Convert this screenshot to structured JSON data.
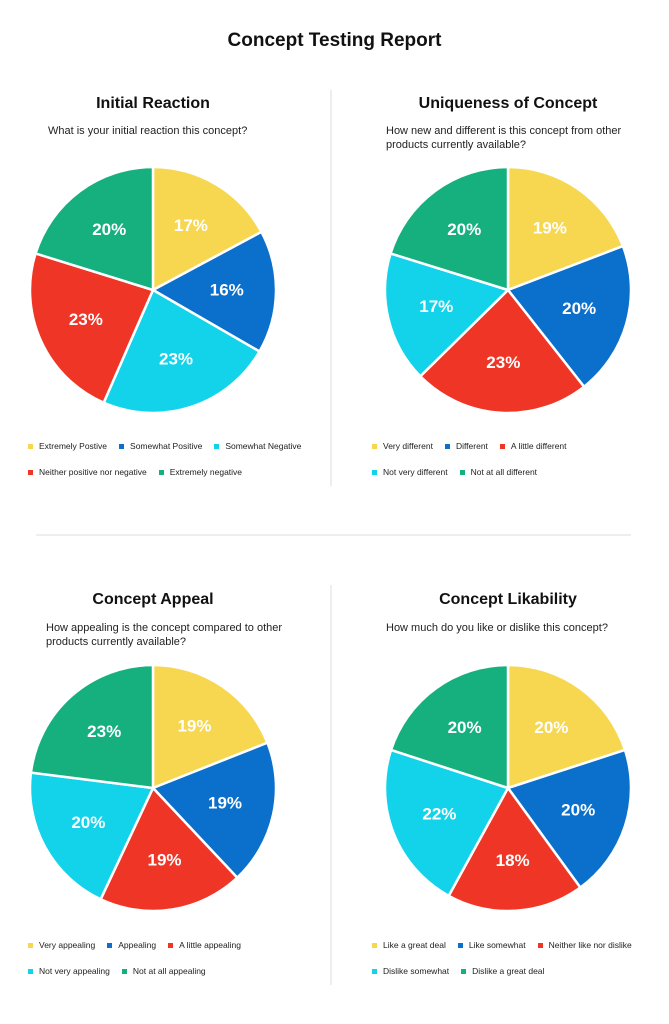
{
  "title": "Concept Testing Report",
  "chart_data": [
    {
      "type": "pie",
      "title": "Initial Reaction",
      "subtitle": "What is your initial reaction this concept?",
      "categories": [
        "Extremely Postive",
        "Somewhat Positive",
        "Somewhat Negative",
        "Neither positive nor negative",
        "Extremely negative"
      ],
      "values": [
        17,
        16,
        23,
        23,
        20
      ],
      "value_labels": [
        "17%",
        "16%",
        "23%",
        "23%",
        "20%"
      ],
      "colors": [
        "#f7d750",
        "#0b6fcc",
        "#13d3ea",
        "#ee3526",
        "#16b07f"
      ]
    },
    {
      "type": "pie",
      "title": "Uniqueness of Concept",
      "subtitle": "How new and different is this concept from other products currently available?",
      "categories": [
        "Very different",
        "Different",
        "A little different",
        "Not very different",
        "Not at all different"
      ],
      "values": [
        19,
        20,
        23,
        17,
        20
      ],
      "value_labels": [
        "19%",
        "20%",
        "23%",
        "17%",
        "20%"
      ],
      "colors": [
        "#f7d750",
        "#0b6fcc",
        "#ee3526",
        "#13d3ea",
        "#16b07f"
      ]
    },
    {
      "type": "pie",
      "title": "Concept Appeal",
      "subtitle": "How appealing is the concept compared to other products currently available?",
      "categories": [
        "Very appealing",
        "Appealing",
        "A little appealing",
        "Not very appealing",
        "Not at all appealing"
      ],
      "values": [
        19,
        19,
        19,
        20,
        23
      ],
      "value_labels": [
        "19%",
        "19%",
        "19%",
        "20%",
        "23%"
      ],
      "colors": [
        "#f7d750",
        "#0b6fcc",
        "#ee3526",
        "#13d3ea",
        "#16b07f"
      ]
    },
    {
      "type": "pie",
      "title": "Concept Likability",
      "subtitle": "How much do you like or dislike this concept?",
      "categories": [
        "Like a great deal",
        "Like somewhat",
        "Neither like nor dislike",
        "Dislike somewhat",
        "Dislike a great deal"
      ],
      "values": [
        20,
        20,
        18,
        22,
        20
      ],
      "value_labels": [
        "20%",
        "20%",
        "18%",
        "22%",
        "20%"
      ],
      "colors": [
        "#f7d750",
        "#0b6fcc",
        "#ee3526",
        "#13d3ea",
        "#16b07f"
      ]
    }
  ]
}
